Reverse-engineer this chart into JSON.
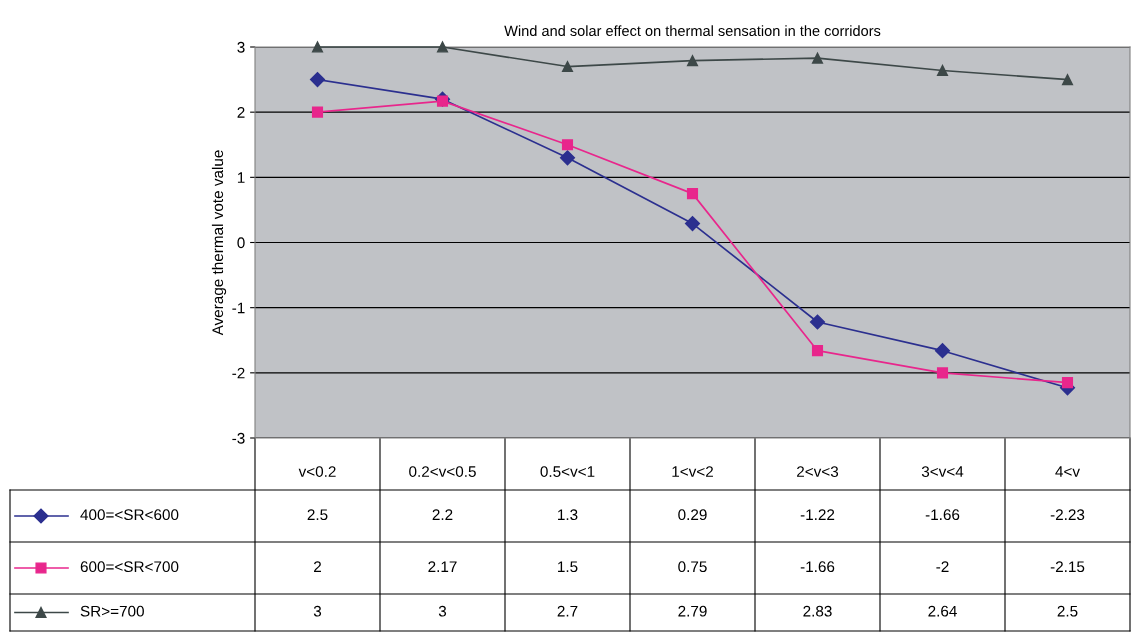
{
  "chart_data": {
    "type": "line",
    "title": "Wind and solar effect on thermal sensation in the corridors",
    "ylabel": "Average thermal vote value",
    "categories": [
      "v<0.2",
      "0.2<v<0.5",
      "0.5<v<1",
      "1<v<2",
      "2<v<3",
      "3<v<4",
      "4<v"
    ],
    "series": [
      {
        "name": "400=<SR<600",
        "color": "#2b2f8f",
        "marker": "diamond",
        "values": [
          2.5,
          2.2,
          1.3,
          0.29,
          -1.22,
          -1.66,
          -2.23
        ]
      },
      {
        "name": "600=<SR<700",
        "color": "#e8268c",
        "marker": "square",
        "values": [
          2,
          2.17,
          1.5,
          0.75,
          -1.66,
          -2,
          -2.15
        ]
      },
      {
        "name": "SR>=700",
        "color": "#3d4848",
        "marker": "triangle",
        "values": [
          3,
          3,
          2.7,
          2.79,
          2.83,
          2.64,
          2.5
        ]
      }
    ],
    "ylim": [
      -3,
      3
    ],
    "yticks": [
      -3,
      -2,
      -1,
      0,
      1,
      2,
      3
    ],
    "grid": "y",
    "legend": "bottom",
    "data_labels": true,
    "line_style": "solid"
  }
}
